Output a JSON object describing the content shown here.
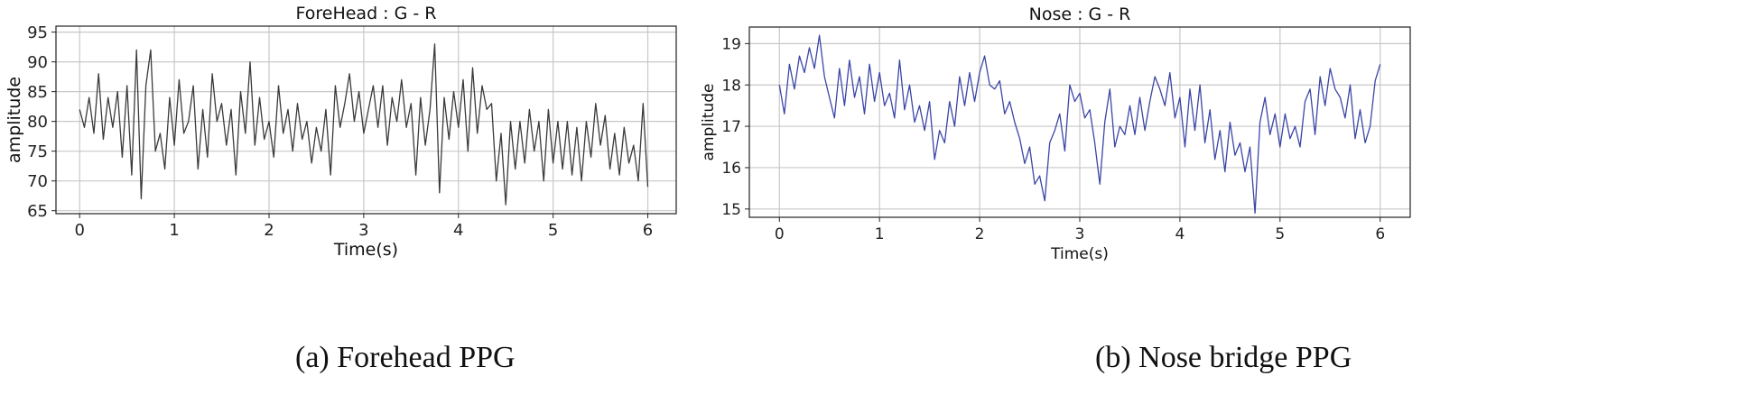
{
  "chart_data": [
    {
      "type": "line",
      "title": "ForeHead : G - R",
      "xlabel": "Time(s)",
      "ylabel": "amplitude",
      "xlim": [
        -0.25,
        6.3
      ],
      "ylim": [
        64.5,
        96
      ],
      "xticks": [
        0,
        1,
        2,
        3,
        4,
        5,
        6
      ],
      "yticks": [
        65,
        70,
        75,
        80,
        85,
        90,
        95
      ],
      "grid": true,
      "color": "#3a3a3a",
      "caption": "(a) Forehead PPG",
      "series": [
        {
          "x": [
            0.0,
            0.05,
            0.1,
            0.15,
            0.2,
            0.25,
            0.3,
            0.35,
            0.4,
            0.45,
            0.5,
            0.55,
            0.6,
            0.65,
            0.7,
            0.75,
            0.8,
            0.85,
            0.9,
            0.95,
            1.0,
            1.05,
            1.1,
            1.15,
            1.2,
            1.25,
            1.3,
            1.35,
            1.4,
            1.45,
            1.5,
            1.55,
            1.6,
            1.65,
            1.7,
            1.75,
            1.8,
            1.85,
            1.9,
            1.95,
            2.0,
            2.05,
            2.1,
            2.15,
            2.2,
            2.25,
            2.3,
            2.35,
            2.4,
            2.45,
            2.5,
            2.55,
            2.6,
            2.65,
            2.7,
            2.75,
            2.8,
            2.85,
            2.9,
            2.95,
            3.0,
            3.05,
            3.1,
            3.15,
            3.2,
            3.25,
            3.3,
            3.35,
            3.4,
            3.45,
            3.5,
            3.55,
            3.6,
            3.65,
            3.7,
            3.75,
            3.8,
            3.85,
            3.9,
            3.95,
            4.0,
            4.05,
            4.1,
            4.15,
            4.2,
            4.25,
            4.3,
            4.35,
            4.4,
            4.45,
            4.5,
            4.55,
            4.6,
            4.65,
            4.7,
            4.75,
            4.8,
            4.85,
            4.9,
            4.95,
            5.0,
            5.05,
            5.1,
            5.15,
            5.2,
            5.25,
            5.3,
            5.35,
            5.4,
            5.45,
            5.5,
            5.55,
            5.6,
            5.65,
            5.7,
            5.75,
            5.8,
            5.85,
            5.9,
            5.95,
            6.0
          ],
          "y": [
            82,
            79,
            84,
            78,
            88,
            77,
            84,
            79,
            85,
            74,
            86,
            71,
            92,
            67,
            86,
            92,
            75,
            78,
            72,
            84,
            76,
            87,
            78,
            80,
            86,
            72,
            82,
            74,
            88,
            80,
            83,
            76,
            82,
            71,
            85,
            78,
            90,
            76,
            84,
            77,
            80,
            74,
            86,
            78,
            82,
            75,
            83,
            77,
            80,
            73,
            79,
            75,
            82,
            71,
            86,
            79,
            83,
            88,
            80,
            85,
            78,
            82,
            86,
            79,
            86,
            76,
            84,
            80,
            87,
            79,
            83,
            71,
            84,
            76,
            82,
            93,
            68,
            84,
            77,
            85,
            79,
            87,
            75,
            89,
            78,
            86,
            82,
            83,
            70,
            78,
            66,
            80,
            72,
            80,
            73,
            82,
            75,
            80,
            70,
            82,
            73,
            80,
            72,
            80,
            71,
            79,
            70,
            80,
            74,
            83,
            76,
            81,
            72,
            78,
            71,
            79,
            73,
            76,
            70,
            83,
            69
          ]
        }
      ]
    },
    {
      "type": "line",
      "title": "Nose : G - R",
      "xlabel": "Time(s)",
      "ylabel": "amplitude",
      "xlim": [
        -0.3,
        6.3
      ],
      "ylim": [
        14.8,
        19.4
      ],
      "xticks": [
        0,
        1,
        2,
        3,
        4,
        5,
        6
      ],
      "yticks": [
        15,
        16,
        17,
        18,
        19
      ],
      "grid": true,
      "color": "#3b45a6",
      "caption": "(b) Nose bridge PPG",
      "series": [
        {
          "x": [
            0.0,
            0.05,
            0.1,
            0.15,
            0.2,
            0.25,
            0.3,
            0.35,
            0.4,
            0.45,
            0.5,
            0.55,
            0.6,
            0.65,
            0.7,
            0.75,
            0.8,
            0.85,
            0.9,
            0.95,
            1.0,
            1.05,
            1.1,
            1.15,
            1.2,
            1.25,
            1.3,
            1.35,
            1.4,
            1.45,
            1.5,
            1.55,
            1.6,
            1.65,
            1.7,
            1.75,
            1.8,
            1.85,
            1.9,
            1.95,
            2.0,
            2.05,
            2.1,
            2.15,
            2.2,
            2.25,
            2.3,
            2.35,
            2.4,
            2.45,
            2.5,
            2.55,
            2.6,
            2.65,
            2.7,
            2.75,
            2.8,
            2.85,
            2.9,
            2.95,
            3.0,
            3.05,
            3.1,
            3.15,
            3.2,
            3.25,
            3.3,
            3.35,
            3.4,
            3.45,
            3.5,
            3.55,
            3.6,
            3.65,
            3.7,
            3.75,
            3.8,
            3.85,
            3.9,
            3.95,
            4.0,
            4.05,
            4.1,
            4.15,
            4.2,
            4.25,
            4.3,
            4.35,
            4.4,
            4.45,
            4.5,
            4.55,
            4.6,
            4.65,
            4.7,
            4.75,
            4.8,
            4.85,
            4.9,
            4.95,
            5.0,
            5.05,
            5.1,
            5.15,
            5.2,
            5.25,
            5.3,
            5.35,
            5.4,
            5.45,
            5.5,
            5.55,
            5.6,
            5.65,
            5.7,
            5.75,
            5.8,
            5.85,
            5.9,
            5.95,
            6.0
          ],
          "y": [
            18.0,
            17.3,
            18.5,
            17.9,
            18.7,
            18.3,
            18.9,
            18.4,
            19.2,
            18.2,
            17.7,
            17.2,
            18.4,
            17.5,
            18.6,
            17.7,
            18.2,
            17.3,
            18.5,
            17.6,
            18.3,
            17.5,
            17.8,
            17.2,
            18.6,
            17.4,
            18.0,
            17.1,
            17.5,
            16.9,
            17.6,
            16.2,
            16.9,
            16.6,
            17.6,
            17.0,
            18.2,
            17.5,
            18.3,
            17.6,
            18.3,
            18.7,
            18.0,
            17.9,
            18.1,
            17.3,
            17.6,
            17.1,
            16.7,
            16.1,
            16.5,
            15.6,
            15.8,
            15.2,
            16.6,
            16.9,
            17.3,
            16.4,
            18.0,
            17.6,
            17.8,
            17.2,
            17.4,
            16.6,
            15.6,
            17.1,
            17.9,
            16.5,
            17.0,
            16.8,
            17.5,
            16.8,
            17.7,
            16.9,
            17.6,
            18.2,
            17.9,
            17.5,
            18.3,
            17.2,
            17.7,
            16.5,
            17.9,
            16.9,
            18.0,
            16.6,
            17.4,
            16.2,
            16.9,
            15.9,
            17.1,
            16.3,
            16.6,
            15.9,
            16.5,
            14.9,
            17.1,
            17.7,
            16.8,
            17.3,
            16.5,
            17.3,
            16.7,
            17.0,
            16.5,
            17.6,
            17.9,
            16.8,
            18.2,
            17.5,
            18.4,
            17.9,
            17.7,
            17.2,
            18.0,
            16.7,
            17.4,
            16.6,
            17.0,
            18.1,
            18.5
          ]
        }
      ]
    }
  ]
}
